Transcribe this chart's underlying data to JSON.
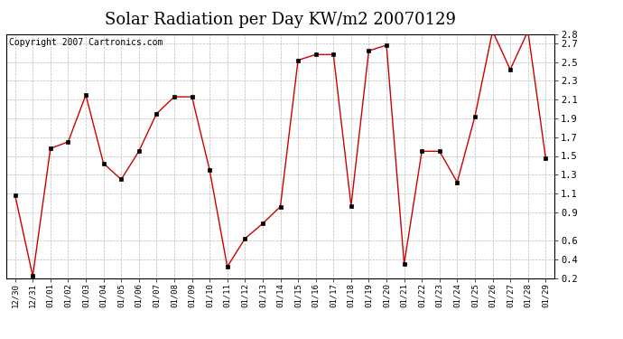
{
  "title": "Solar Radiation per Day KW/m2 20070129",
  "copyright_text": "Copyright 2007 Cartronics.com",
  "dates": [
    "12/30",
    "12/31",
    "01/01",
    "01/02",
    "01/03",
    "01/04",
    "01/05",
    "01/06",
    "01/07",
    "01/08",
    "01/09",
    "01/10",
    "01/11",
    "01/12",
    "01/13",
    "01/14",
    "01/15",
    "01/16",
    "01/17",
    "01/18",
    "01/19",
    "01/20",
    "01/21",
    "01/22",
    "01/23",
    "01/24",
    "01/25",
    "01/26",
    "01/27",
    "01/28",
    "01/29"
  ],
  "values": [
    1.08,
    0.22,
    1.58,
    1.65,
    2.15,
    1.42,
    1.25,
    1.55,
    1.95,
    2.13,
    2.13,
    1.35,
    0.32,
    0.62,
    0.78,
    0.96,
    2.52,
    2.58,
    2.58,
    0.97,
    2.62,
    2.68,
    0.35,
    1.55,
    1.55,
    1.22,
    1.92,
    2.83,
    2.42,
    2.83,
    1.48
  ],
  "line_color": "#cc0000",
  "marker_color": "#000000",
  "bg_color": "#ffffff",
  "plot_bg_color": "#ffffff",
  "grid_color": "#bbbbbb",
  "ylim": [
    0.2,
    2.8
  ],
  "yticks": [
    0.2,
    0.4,
    0.6,
    0.9,
    1.1,
    1.3,
    1.5,
    1.7,
    1.9,
    2.1,
    2.3,
    2.5,
    2.7,
    2.8
  ],
  "title_fontsize": 13,
  "copyright_fontsize": 7,
  "tick_fontsize": 7.5,
  "xtick_fontsize": 6.5
}
